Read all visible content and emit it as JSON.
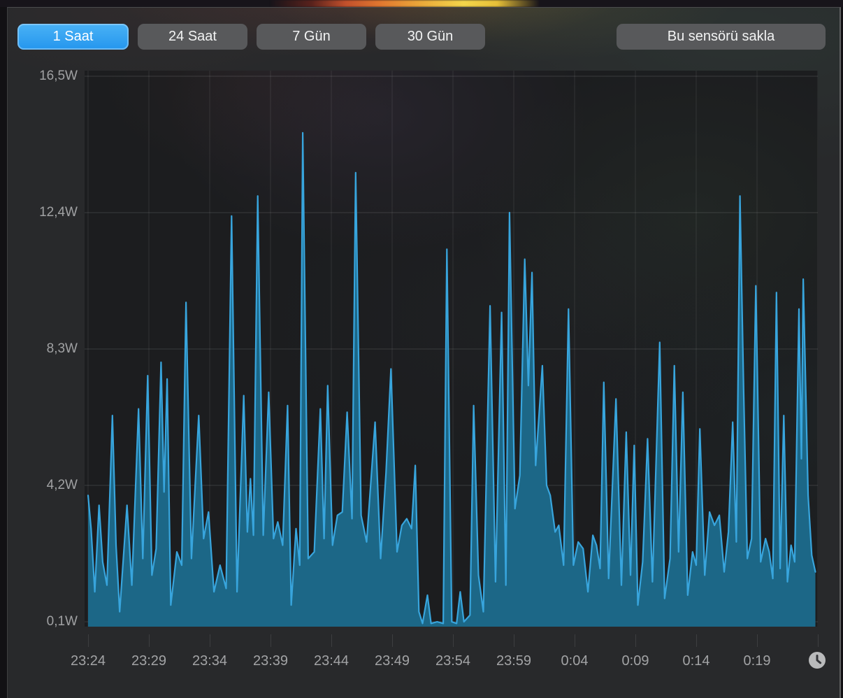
{
  "window": {
    "kind": "sensor-history-panel"
  },
  "toolbar": {
    "range_buttons": [
      {
        "label": "1 Saat",
        "selected": true
      },
      {
        "label": "24 Saat",
        "selected": false
      },
      {
        "label": "7 Gün",
        "selected": false
      },
      {
        "label": "30 Gün",
        "selected": false
      }
    ],
    "hide_sensor_label": "Bu sensörü sakla"
  },
  "chart_data": {
    "type": "area",
    "unit": "W",
    "title": "",
    "xlabel": "",
    "ylabel": "",
    "grid": true,
    "legend": "none",
    "y_ticks": [
      {
        "label": "16,5W",
        "value": 16.5
      },
      {
        "label": "12,4W",
        "value": 12.4
      },
      {
        "label": "8,3W",
        "value": 8.3
      },
      {
        "label": "4,2W",
        "value": 4.2
      },
      {
        "label": "0,1W",
        "value": 0.1
      }
    ],
    "ylim": [
      0.0,
      16.9
    ],
    "x_ticks": [
      {
        "label": "23:24",
        "minute": 0
      },
      {
        "label": "23:29",
        "minute": 5
      },
      {
        "label": "23:34",
        "minute": 10
      },
      {
        "label": "23:39",
        "minute": 15
      },
      {
        "label": "23:44",
        "minute": 20
      },
      {
        "label": "23:49",
        "minute": 25
      },
      {
        "label": "23:54",
        "minute": 30
      },
      {
        "label": "23:59",
        "minute": 35
      },
      {
        "label": "0:04",
        "minute": 40
      },
      {
        "label": "0:09",
        "minute": 45
      },
      {
        "label": "0:14",
        "minute": 50
      },
      {
        "label": "0:19",
        "minute": 55
      }
    ],
    "xlim_minutes": [
      0,
      60
    ],
    "colors": {
      "line": "#38a5dd",
      "fill": "#1c6787",
      "plot_bg": "#1c1d1f",
      "grid_h": "rgba(255,255,255,0.13)",
      "grid_v": "rgba(255,255,255,0.09)"
    },
    "series": [
      {
        "name": "power-watts",
        "points": [
          [
            0,
            3.9
          ],
          [
            0.25,
            2.9
          ],
          [
            0.55,
            1.0
          ],
          [
            0.9,
            3.6
          ],
          [
            1.2,
            1.9
          ],
          [
            1.55,
            1.2
          ],
          [
            2.0,
            6.3
          ],
          [
            2.3,
            2.4
          ],
          [
            2.6,
            0.4
          ],
          [
            3.2,
            3.6
          ],
          [
            3.6,
            1.2
          ],
          [
            4.15,
            6.5
          ],
          [
            4.5,
            2.0
          ],
          [
            4.9,
            7.5
          ],
          [
            5.25,
            1.5
          ],
          [
            5.6,
            2.3
          ],
          [
            6.0,
            7.9
          ],
          [
            6.25,
            4.0
          ],
          [
            6.5,
            7.4
          ],
          [
            6.8,
            0.6
          ],
          [
            7.3,
            2.2
          ],
          [
            7.7,
            1.8
          ],
          [
            8.05,
            9.7
          ],
          [
            8.5,
            2.0
          ],
          [
            9.1,
            6.3
          ],
          [
            9.5,
            2.6
          ],
          [
            9.9,
            3.4
          ],
          [
            10.35,
            1.0
          ],
          [
            10.85,
            1.8
          ],
          [
            11.35,
            1.1
          ],
          [
            11.8,
            12.3
          ],
          [
            12.25,
            1.0
          ],
          [
            12.8,
            6.9
          ],
          [
            13.1,
            2.8
          ],
          [
            13.35,
            4.4
          ],
          [
            13.6,
            2.7
          ],
          [
            13.95,
            12.9
          ],
          [
            14.4,
            2.7
          ],
          [
            14.85,
            7.0
          ],
          [
            15.25,
            2.6
          ],
          [
            15.6,
            3.1
          ],
          [
            16.0,
            2.4
          ],
          [
            16.4,
            6.6
          ],
          [
            16.7,
            0.6
          ],
          [
            17.1,
            2.9
          ],
          [
            17.4,
            1.8
          ],
          [
            17.65,
            14.8
          ],
          [
            18.1,
            2.0
          ],
          [
            18.6,
            2.2
          ],
          [
            19.1,
            6.5
          ],
          [
            19.4,
            2.6
          ],
          [
            19.7,
            7.2
          ],
          [
            20.1,
            2.4
          ],
          [
            20.5,
            3.3
          ],
          [
            20.9,
            3.4
          ],
          [
            21.3,
            6.4
          ],
          [
            21.7,
            3.2
          ],
          [
            22.0,
            13.6
          ],
          [
            22.45,
            3.3
          ],
          [
            22.9,
            2.5
          ],
          [
            23.6,
            6.1
          ],
          [
            24.05,
            2.0
          ],
          [
            24.5,
            4.6
          ],
          [
            24.9,
            7.7
          ],
          [
            25.4,
            2.2
          ],
          [
            25.8,
            3.0
          ],
          [
            26.2,
            3.2
          ],
          [
            26.6,
            2.9
          ],
          [
            26.9,
            4.8
          ],
          [
            27.2,
            0.4
          ],
          [
            27.5,
            0.05
          ],
          [
            27.9,
            0.9
          ],
          [
            28.2,
            0.05
          ],
          [
            28.7,
            0.1
          ],
          [
            29.2,
            0.05
          ],
          [
            29.5,
            11.3
          ],
          [
            29.9,
            0.1
          ],
          [
            30.3,
            0.05
          ],
          [
            30.6,
            1.0
          ],
          [
            30.9,
            0.1
          ],
          [
            31.4,
            0.3
          ],
          [
            31.7,
            6.6
          ],
          [
            32.1,
            1.5
          ],
          [
            32.5,
            0.4
          ],
          [
            33.05,
            9.6
          ],
          [
            33.5,
            1.3
          ],
          [
            34.0,
            9.4
          ],
          [
            34.35,
            1.2
          ],
          [
            34.65,
            12.4
          ],
          [
            35.1,
            3.5
          ],
          [
            35.5,
            4.5
          ],
          [
            35.9,
            11.0
          ],
          [
            36.2,
            7.2
          ],
          [
            36.5,
            10.6
          ],
          [
            36.8,
            4.8
          ],
          [
            37.35,
            7.8
          ],
          [
            37.7,
            4.2
          ],
          [
            38.0,
            3.9
          ],
          [
            38.4,
            2.8
          ],
          [
            38.7,
            3.0
          ],
          [
            39.1,
            1.8
          ],
          [
            39.5,
            9.5
          ],
          [
            39.9,
            1.8
          ],
          [
            40.3,
            2.5
          ],
          [
            40.7,
            2.3
          ],
          [
            41.1,
            1.0
          ],
          [
            41.5,
            2.7
          ],
          [
            41.8,
            2.4
          ],
          [
            42.1,
            1.7
          ],
          [
            42.4,
            7.3
          ],
          [
            42.8,
            1.4
          ],
          [
            43.4,
            6.8
          ],
          [
            43.85,
            1.2
          ],
          [
            44.25,
            5.8
          ],
          [
            44.6,
            1.5
          ],
          [
            44.9,
            5.4
          ],
          [
            45.2,
            0.6
          ],
          [
            45.6,
            1.9
          ],
          [
            46.0,
            5.6
          ],
          [
            46.4,
            1.3
          ],
          [
            47.0,
            8.5
          ],
          [
            47.4,
            0.8
          ],
          [
            47.85,
            2.0
          ],
          [
            48.2,
            7.8
          ],
          [
            48.55,
            2.2
          ],
          [
            48.9,
            7.0
          ],
          [
            49.3,
            0.9
          ],
          [
            49.7,
            2.2
          ],
          [
            50.0,
            1.8
          ],
          [
            50.3,
            5.9
          ],
          [
            50.7,
            1.5
          ],
          [
            51.1,
            3.4
          ],
          [
            51.5,
            3.0
          ],
          [
            51.9,
            3.3
          ],
          [
            52.3,
            1.6
          ],
          [
            52.65,
            2.8
          ],
          [
            53.0,
            6.1
          ],
          [
            53.3,
            2.5
          ],
          [
            53.6,
            12.9
          ],
          [
            53.9,
            7.0
          ],
          [
            54.2,
            2.0
          ],
          [
            54.55,
            2.6
          ],
          [
            54.9,
            10.2
          ],
          [
            55.3,
            1.9
          ],
          [
            55.7,
            2.6
          ],
          [
            56.0,
            2.2
          ],
          [
            56.3,
            1.4
          ],
          [
            56.6,
            10.0
          ],
          [
            56.9,
            1.7
          ],
          [
            57.2,
            6.3
          ],
          [
            57.5,
            1.3
          ],
          [
            57.8,
            2.4
          ],
          [
            58.1,
            1.9
          ],
          [
            58.45,
            9.5
          ],
          [
            58.65,
            5.0
          ],
          [
            58.8,
            10.4
          ],
          [
            59.2,
            3.9
          ],
          [
            59.5,
            2.1
          ],
          [
            59.8,
            1.6
          ]
        ]
      }
    ]
  },
  "footer": {
    "clock_icon": "clock"
  }
}
